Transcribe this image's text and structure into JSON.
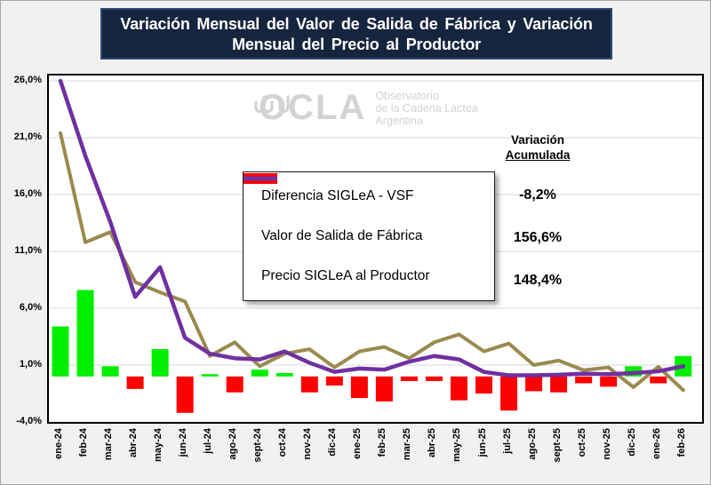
{
  "title": {
    "line1": "Variación Mensual del Valor de Salida de Fábrica y Variación",
    "line2": "Mensual del Precio al Productor"
  },
  "watermark": {
    "brand": "OCLA",
    "sub1": "Observatorio",
    "sub2": "de la Cadena Láctea",
    "sub3": "Argentina"
  },
  "accumulated": {
    "header_line1": "Variación",
    "header_line2": "Acumulada",
    "diferencia": "-8,2%",
    "vsf": "156,6%",
    "siglea": "148,4%"
  },
  "legend": {
    "diferencia_label": "Diferencia SIGLeA - VSF",
    "vsf_label": "Valor de Salida de Fábrica",
    "siglea_label": "Precio SIGLeA al Productor"
  },
  "colors": {
    "bar_positive": "#00EE00",
    "bar_negative": "#FF0000",
    "vsf_line": "#9A8A4E",
    "siglea_line": "#7030A0",
    "title_bg": "#16253E",
    "title_border": "#2E4C74",
    "gridline": "#D9D9D9",
    "watermark": "#D3D3D3"
  },
  "chart_data": {
    "type": "bar+line combo",
    "title": "Variación Mensual del Valor de Salida de Fábrica y Variación Mensual del Precio al Productor",
    "categories": [
      "ene-24",
      "feb-24",
      "mar-24",
      "abr-24",
      "may-24",
      "jun-24",
      "jul-24",
      "ago-24",
      "sept-24",
      "oct-24",
      "nov-24",
      "dic-24",
      "ene-25",
      "feb-25",
      "mar-25",
      "abr-25",
      "may-25",
      "jun-25",
      "jul-25",
      "ago-25",
      "sept-25",
      "oct-25",
      "nov-25",
      "dic-25",
      "ene-26",
      "feb-26"
    ],
    "series": [
      {
        "name": "Diferencia SIGLeA - VSF",
        "type": "bar",
        "accumulated": "-8,2%",
        "values": [
          4.4,
          7.6,
          0.9,
          -1.1,
          2.4,
          -3.2,
          0.2,
          -1.4,
          0.6,
          0.3,
          -1.4,
          -0.8,
          -1.9,
          -2.2,
          -0.4,
          -0.4,
          -2.1,
          -1.5,
          -3.0,
          -1.3,
          -1.4,
          -0.6,
          -0.9,
          0.9,
          -0.6,
          1.8
        ]
      },
      {
        "name": "Valor de Salida de Fábrica",
        "type": "line",
        "accumulated": "156,6%",
        "values": [
          21.4,
          11.8,
          12.7,
          8.3,
          7.4,
          6.6,
          1.8,
          3.0,
          0.9,
          2.0,
          2.4,
          0.8,
          2.2,
          2.6,
          1.6,
          3.0,
          3.7,
          2.2,
          2.9,
          1.0,
          1.4,
          0.55,
          0.8,
          -0.95,
          0.85,
          -1.2
        ]
      },
      {
        "name": "Precio SIGLeA al Productor",
        "type": "line",
        "accumulated": "148,4%",
        "values": [
          26.0,
          19.4,
          13.6,
          7.0,
          9.6,
          3.4,
          2.0,
          1.6,
          1.5,
          2.2,
          1.2,
          0.4,
          0.7,
          0.6,
          1.3,
          1.8,
          1.5,
          0.4,
          0.1,
          0.1,
          0.15,
          0.25,
          0.2,
          0.3,
          0.45,
          0.9
        ]
      }
    ],
    "y_axis": {
      "tick_labels": [
        "26,0%",
        "21,0%",
        "16,0%",
        "11,0%",
        "6,0%",
        "1,0%",
        "-4,0%"
      ],
      "tick_values": [
        26,
        21,
        16,
        11,
        6,
        1,
        -4
      ],
      "min": -4,
      "max": 26,
      "unit": "%"
    },
    "grid": true,
    "legend_position": "overlay-center-left"
  }
}
